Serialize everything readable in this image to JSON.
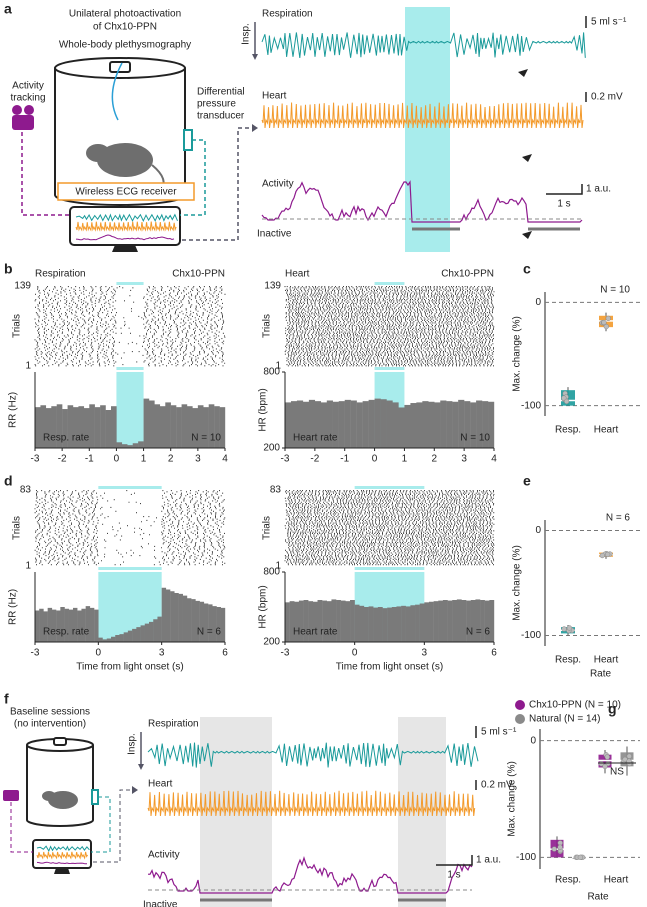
{
  "panel_a": {
    "letter": "a",
    "title_lines": [
      "Unilateral photoactivation",
      "of Chx10-PPN"
    ],
    "subtitle": "Whole-body plethysmography",
    "activity_tracking_lines": [
      "Activity",
      "tracking"
    ],
    "transducer_lines": [
      "Differential",
      "pressure",
      "transducer"
    ],
    "ecg_receiver": "Wireless ECG receiver",
    "respiration": "Respiration",
    "heart": "Heart",
    "activity": "Activity",
    "inactive": "Inactive",
    "insp": "Insp.",
    "resp_scale": "5 ml s⁻¹",
    "heart_scale": "0.2 mV",
    "activity_scale": "1 a.u.",
    "time_scale": "1 s"
  },
  "panel_b": {
    "letter": "b",
    "xlim": [
      -3,
      4
    ],
    "xticks": [
      -3,
      -2,
      -1,
      0,
      1,
      2,
      3,
      4
    ],
    "light": [
      0,
      1
    ],
    "bins": [
      -3,
      -2.8,
      -2.6,
      -2.4,
      -2.2,
      -2,
      -1.8,
      -1.6,
      -1.4,
      -1.2,
      -1,
      -0.8,
      -0.6,
      -0.4,
      -0.2,
      0,
      0.2,
      0.4,
      0.6,
      0.8,
      1,
      1.2,
      1.4,
      1.6,
      1.8,
      2,
      2.2,
      2.4,
      2.6,
      2.8,
      3,
      3.2,
      3.4,
      3.6,
      3.8,
      4
    ],
    "charts": [
      {
        "title": "Respiration",
        "tag": "Chx10-PPN",
        "raster_ylabel": "Trials",
        "raster_yticks": [
          1,
          139
        ],
        "ylabel": "RR (Hz)",
        "inset": "Resp. rate",
        "n_label": "N = 10",
        "ylim": [
          0,
          8
        ],
        "values": [
          4.3,
          4.5,
          4.2,
          4.4,
          4.6,
          4.1,
          4.5,
          4.3,
          4.4,
          4.2,
          4.6,
          4.3,
          4.5,
          4.0,
          4.4,
          0.6,
          0.4,
          0.3,
          0.5,
          0.7,
          5.2,
          5.0,
          4.6,
          4.4,
          4.8,
          4.5,
          4.3,
          4.6,
          4.4,
          4.2,
          4.5,
          4.3,
          4.6,
          4.4,
          4.3
        ]
      },
      {
        "title": "Heart",
        "tag": "Chx10-PPN",
        "raster_ylabel": "Trials",
        "raster_yticks": [
          1,
          139
        ],
        "ylabel": "HR (bpm)",
        "inset": "Heart rate",
        "n_label": "N = 10",
        "ylim": [
          200,
          800
        ],
        "yticks": [
          200,
          800
        ],
        "values": [
          560,
          570,
          575,
          565,
          580,
          570,
          560,
          575,
          565,
          570,
          580,
          575,
          560,
          570,
          580,
          590,
          585,
          575,
          560,
          520,
          540,
          555,
          560,
          570,
          565,
          560,
          575,
          570,
          565,
          580,
          570,
          560,
          575,
          570,
          565
        ]
      }
    ]
  },
  "panel_c": {
    "letter": "c",
    "n_label": "N = 10",
    "ylabel": "Max. change (%)",
    "ylim": [
      -110,
      10
    ],
    "yticks": [
      0,
      -100
    ],
    "boxes": [
      {
        "name": "Resp.",
        "color": "#1a9a9a",
        "min": -100,
        "q1": -100,
        "median": -95,
        "q3": -85,
        "max": -82
      },
      {
        "name": "Heart",
        "color": "#f39a2b",
        "min": -28,
        "q1": -24,
        "median": -18,
        "q3": -13,
        "max": -10
      }
    ]
  },
  "panel_d": {
    "letter": "d",
    "xlim": [
      -3,
      6
    ],
    "xticks": [
      -3,
      0,
      3,
      6
    ],
    "light": [
      0,
      3
    ],
    "xlabel": "Time from light onset (s)",
    "bins": [
      -3,
      -2.8,
      -2.6,
      -2.4,
      -2.2,
      -2,
      -1.8,
      -1.6,
      -1.4,
      -1.2,
      -1,
      -0.8,
      -0.6,
      -0.4,
      -0.2,
      0,
      0.2,
      0.4,
      0.6,
      0.8,
      1,
      1.2,
      1.4,
      1.6,
      1.8,
      2,
      2.2,
      2.4,
      2.6,
      2.8,
      3,
      3.2,
      3.4,
      3.6,
      3.8,
      4,
      4.2,
      4.4,
      4.6,
      4.8,
      5,
      5.2,
      5.4,
      5.6,
      5.8,
      6
    ],
    "charts": [
      {
        "raster_ylabel": "Trials",
        "raster_yticks": [
          1,
          83
        ],
        "ylabel": "RR (Hz)",
        "inset": "Resp. rate",
        "n_label": "N = 6",
        "ylim": [
          0,
          8
        ],
        "values": [
          3.6,
          3.8,
          3.5,
          3.9,
          3.7,
          3.6,
          4.0,
          3.8,
          3.7,
          3.9,
          3.6,
          3.8,
          4.1,
          3.9,
          3.7,
          0.5,
          0.3,
          0.4,
          0.6,
          0.8,
          0.9,
          1.1,
          1.3,
          1.5,
          1.7,
          1.9,
          2.1,
          2.3,
          2.6,
          2.9,
          6.2,
          6.0,
          5.8,
          5.6,
          5.5,
          5.3,
          5.0,
          4.9,
          4.7,
          4.6,
          4.4,
          4.3,
          4.1,
          4.0,
          3.9
        ]
      },
      {
        "raster_ylabel": "Trials",
        "raster_yticks": [
          1,
          83
        ],
        "ylabel": "HR (bpm)",
        "inset": "Heart rate",
        "n_label": "N = 6",
        "ylim": [
          200,
          800
        ],
        "yticks": [
          200,
          800
        ],
        "values": [
          540,
          550,
          545,
          555,
          560,
          550,
          545,
          560,
          555,
          550,
          565,
          560,
          555,
          550,
          560,
          520,
          510,
          500,
          505,
          495,
          500,
          490,
          495,
          500,
          505,
          510,
          505,
          515,
          520,
          530,
          540,
          545,
          550,
          555,
          560,
          555,
          560,
          565,
          560,
          555,
          560,
          565,
          560,
          555,
          560
        ]
      }
    ]
  },
  "panel_e": {
    "letter": "e",
    "n_label": "N = 6",
    "ylabel": "Max. change (%)",
    "xlabel": "Rate",
    "ylim": [
      -110,
      10
    ],
    "yticks": [
      0,
      -100
    ],
    "boxes": [
      {
        "name": "Resp.",
        "color": "#1a9a9a",
        "min": -100,
        "q1": -98,
        "median": -95,
        "q3": -92,
        "max": -90
      },
      {
        "name": "Heart",
        "color": "#f39a2b",
        "min": -27,
        "q1": -25,
        "median": -23,
        "q3": -21,
        "max": -20
      }
    ]
  },
  "panel_f": {
    "letter": "f",
    "title_lines": [
      "Baseline sessions",
      "(no intervention)"
    ],
    "respiration": "Respiration",
    "heart": "Heart",
    "activity": "Activity",
    "inactive": "Inactive",
    "insp": "Insp.",
    "resp_scale": "5 ml s⁻¹",
    "heart_scale": "0.2 mV",
    "activity_scale": "1 a.u.",
    "time_scale": "1 s"
  },
  "panel_g": {
    "letter": "g",
    "ylabel": "Max. change (%)",
    "xlabel": "Rate",
    "ns": "NS",
    "ylim": [
      -110,
      10
    ],
    "yticks": [
      0,
      -100
    ],
    "categories": [
      "Resp.",
      "Heart"
    ],
    "series": [
      {
        "name": "Chx10-PPN (N = 10)",
        "color": "#8e1a8e",
        "boxes": [
          {
            "min": -100,
            "q1": -100,
            "median": -93,
            "q3": -85,
            "max": -82
          },
          {
            "min": -28,
            "q1": -23,
            "median": -17,
            "q3": -12,
            "max": -8
          }
        ]
      },
      {
        "name": "Natural (N = 14)",
        "color": "#8a8a8a",
        "boxes": [
          {
            "min": -100,
            "q1": -100,
            "median": -100,
            "q3": -100,
            "max": -100
          },
          {
            "min": -30,
            "q1": -22,
            "median": -17,
            "q3": -10,
            "max": -5
          }
        ]
      }
    ]
  }
}
